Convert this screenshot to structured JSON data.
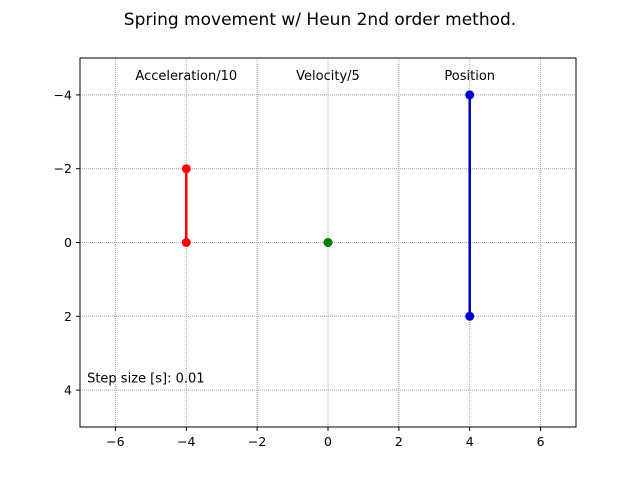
{
  "chart_data": {
    "type": "scatter",
    "title": "Spring movement w/ Heun 2nd order method.",
    "xlim": [
      -7,
      7
    ],
    "ylim": [
      -5,
      5
    ],
    "y_inverted": true,
    "grid": true,
    "xticks": [
      "−6",
      "−4",
      "−2",
      "0",
      "2",
      "4",
      "6"
    ],
    "xtick_values": [
      -6,
      -4,
      -2,
      0,
      2,
      4,
      6
    ],
    "yticks": [
      "−4",
      "−2",
      "0",
      "2",
      "4"
    ],
    "ytick_values": [
      -4,
      -2,
      0,
      2,
      4
    ],
    "annotations": [
      {
        "text": "Acceleration/10",
        "x": -4,
        "y": -4.4
      },
      {
        "text": "Velocity/5",
        "x": 0,
        "y": -4.4
      },
      {
        "text": "Position",
        "x": 4,
        "y": -4.4
      },
      {
        "text": "Step size [s]: 0.01",
        "x": -6.8,
        "y": 3.8
      }
    ],
    "series": [
      {
        "label": "Acceleration/10",
        "color": "#ff0000",
        "x": [
          -4,
          -4
        ],
        "y": [
          0,
          -2
        ]
      },
      {
        "label": "Velocity/5",
        "color": "#008000",
        "x": [
          0,
          0
        ],
        "y": [
          0,
          0
        ]
      },
      {
        "label": "Position",
        "color": "#0000cd",
        "x": [
          4,
          4
        ],
        "y": [
          -4,
          2
        ]
      }
    ]
  }
}
